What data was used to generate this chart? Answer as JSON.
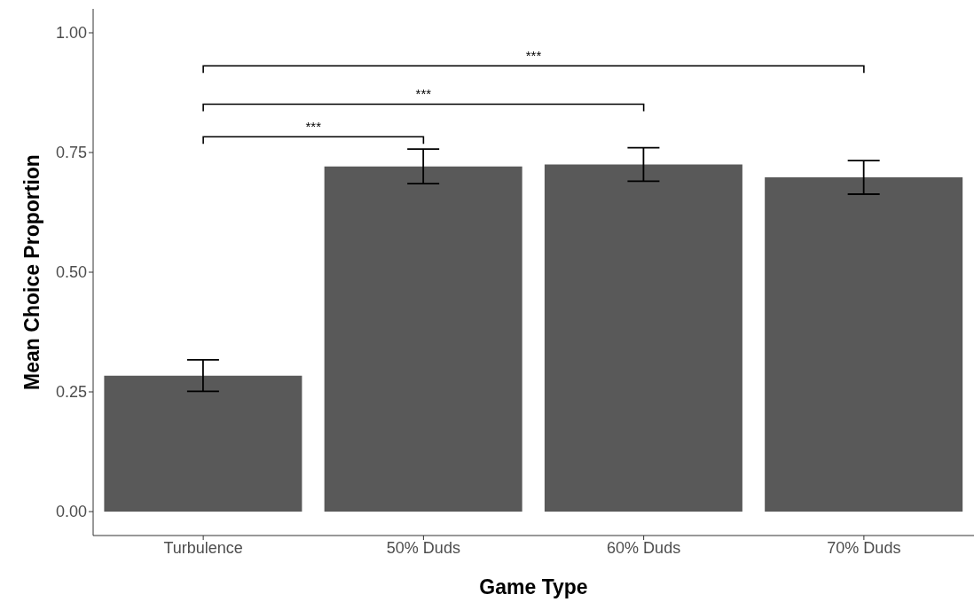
{
  "chart_data": {
    "type": "bar",
    "xlabel": "Game Type",
    "ylabel": "Mean Choice Proportion",
    "categories": [
      "Turbulence",
      "50% Duds",
      "60% Duds",
      "70% Duds"
    ],
    "values": [
      0.284,
      0.721,
      0.725,
      0.698
    ],
    "errors": [
      0.033,
      0.036,
      0.035,
      0.035
    ],
    "color": "#595959",
    "ylim": [
      -0.05,
      1.05
    ],
    "yticks": [
      {
        "value": 0,
        "label": "0.00"
      },
      {
        "value": 0.25,
        "label": "0.25"
      },
      {
        "value": 0.5,
        "label": "0.50"
      },
      {
        "value": 0.75,
        "label": "0.75"
      },
      {
        "value": 1,
        "label": "1.00"
      }
    ],
    "grid": false,
    "annotations": [
      "***",
      "***",
      "***"
    ]
  }
}
